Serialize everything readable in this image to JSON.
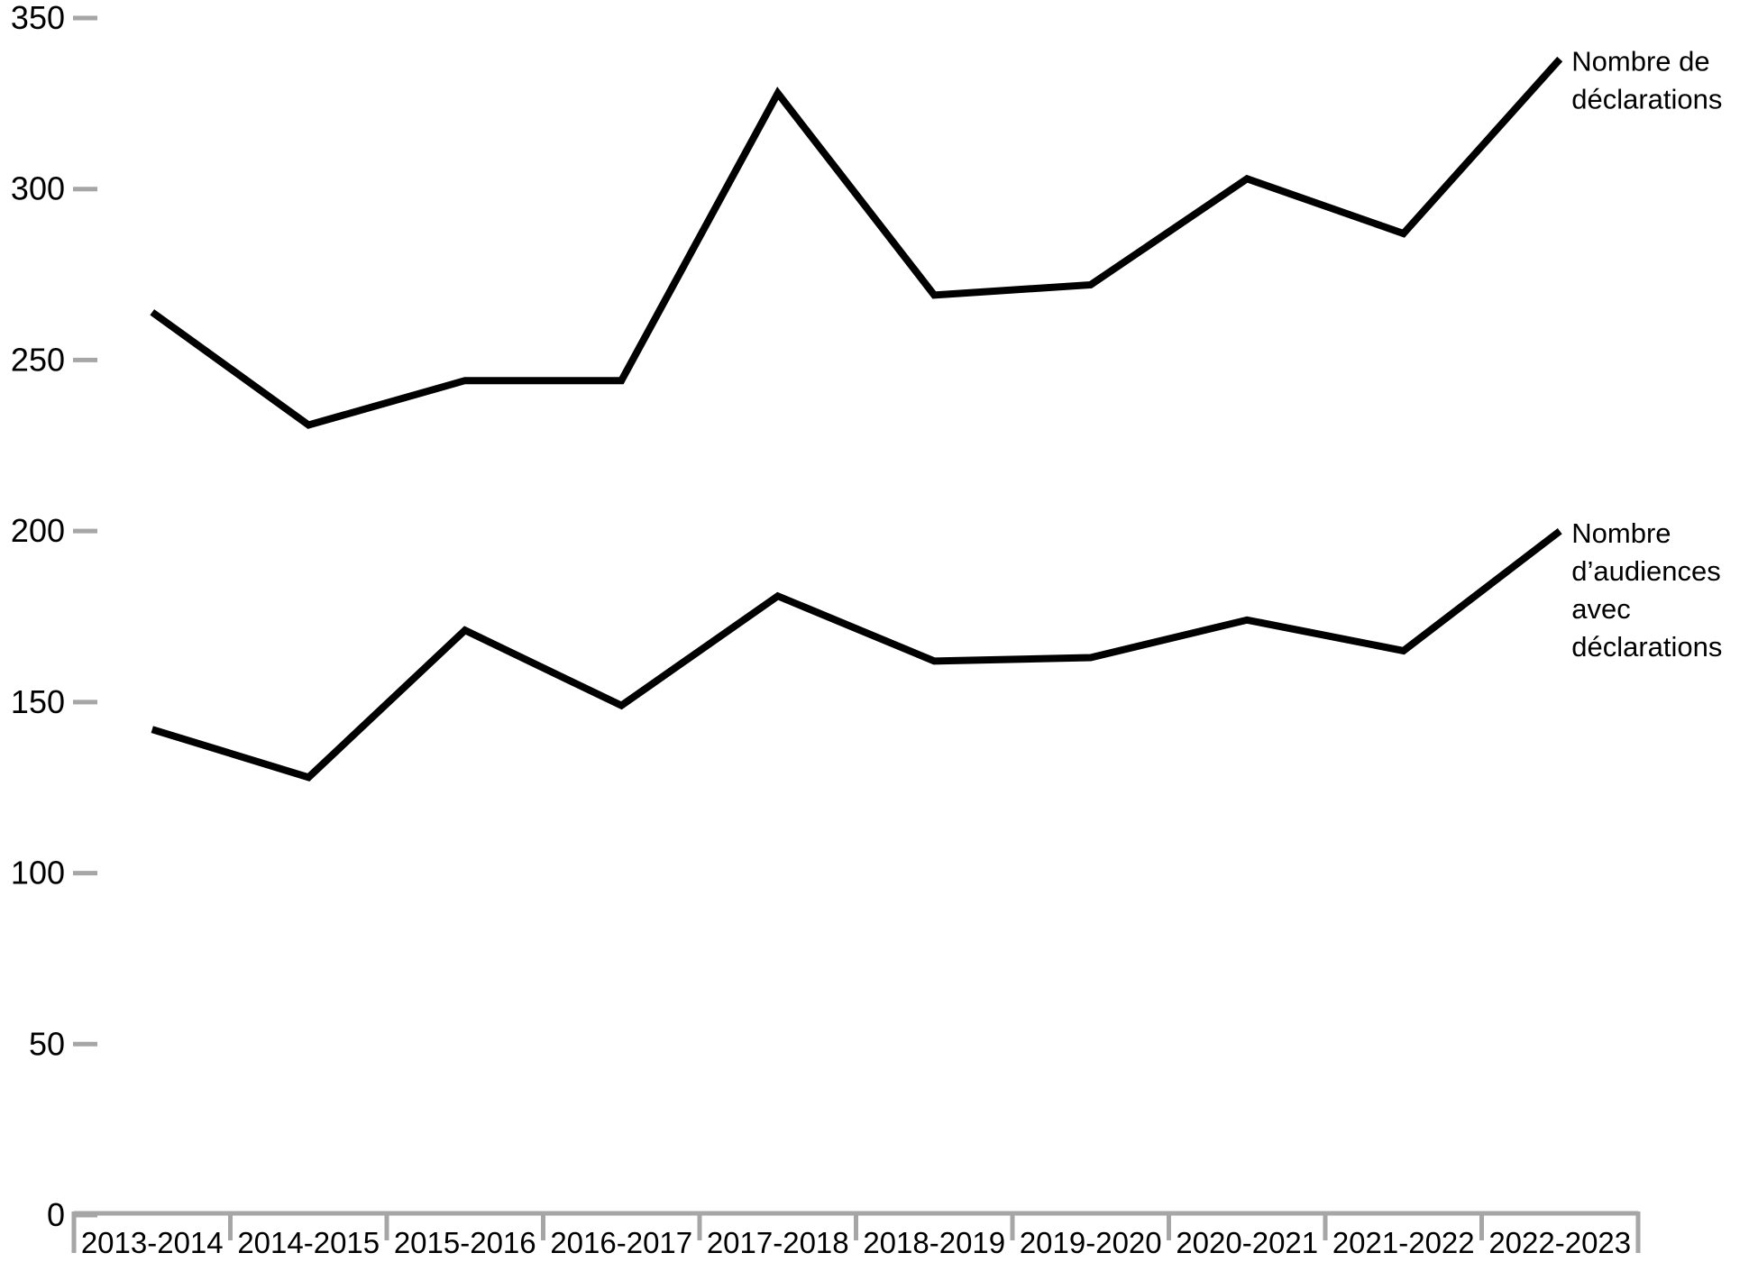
{
  "chart_data": {
    "type": "line",
    "title": "",
    "xlabel": "",
    "ylabel": "",
    "categories": [
      "2013-2014",
      "2014-2015",
      "2015-2016",
      "2016-2017",
      "2017-2018",
      "2018-2019",
      "2019-2020",
      "2020-2021",
      "2021-2022",
      "2022-2023"
    ],
    "series": [
      {
        "name": "Nombre de déclarations",
        "label_lines": [
          "Nombre de",
          "déclarations"
        ],
        "values": [
          264,
          231,
          244,
          244,
          328,
          269,
          272,
          303,
          287,
          338
        ]
      },
      {
        "name": "Nombre d’audiences avec déclarations",
        "label_lines": [
          "Nombre",
          "d’audiences",
          "avec",
          "déclarations"
        ],
        "values": [
          142,
          128,
          171,
          149,
          181,
          162,
          163,
          174,
          165,
          200
        ]
      }
    ],
    "ylim": [
      0,
      350
    ],
    "y_ticks": [
      0,
      50,
      100,
      150,
      200,
      250,
      300,
      350
    ],
    "grid": false,
    "legend_position": "right-of-line-end",
    "colors": {
      "series_line": "#000000",
      "axis": "#a6a6a6",
      "text": "#000000",
      "background": "#ffffff"
    }
  }
}
